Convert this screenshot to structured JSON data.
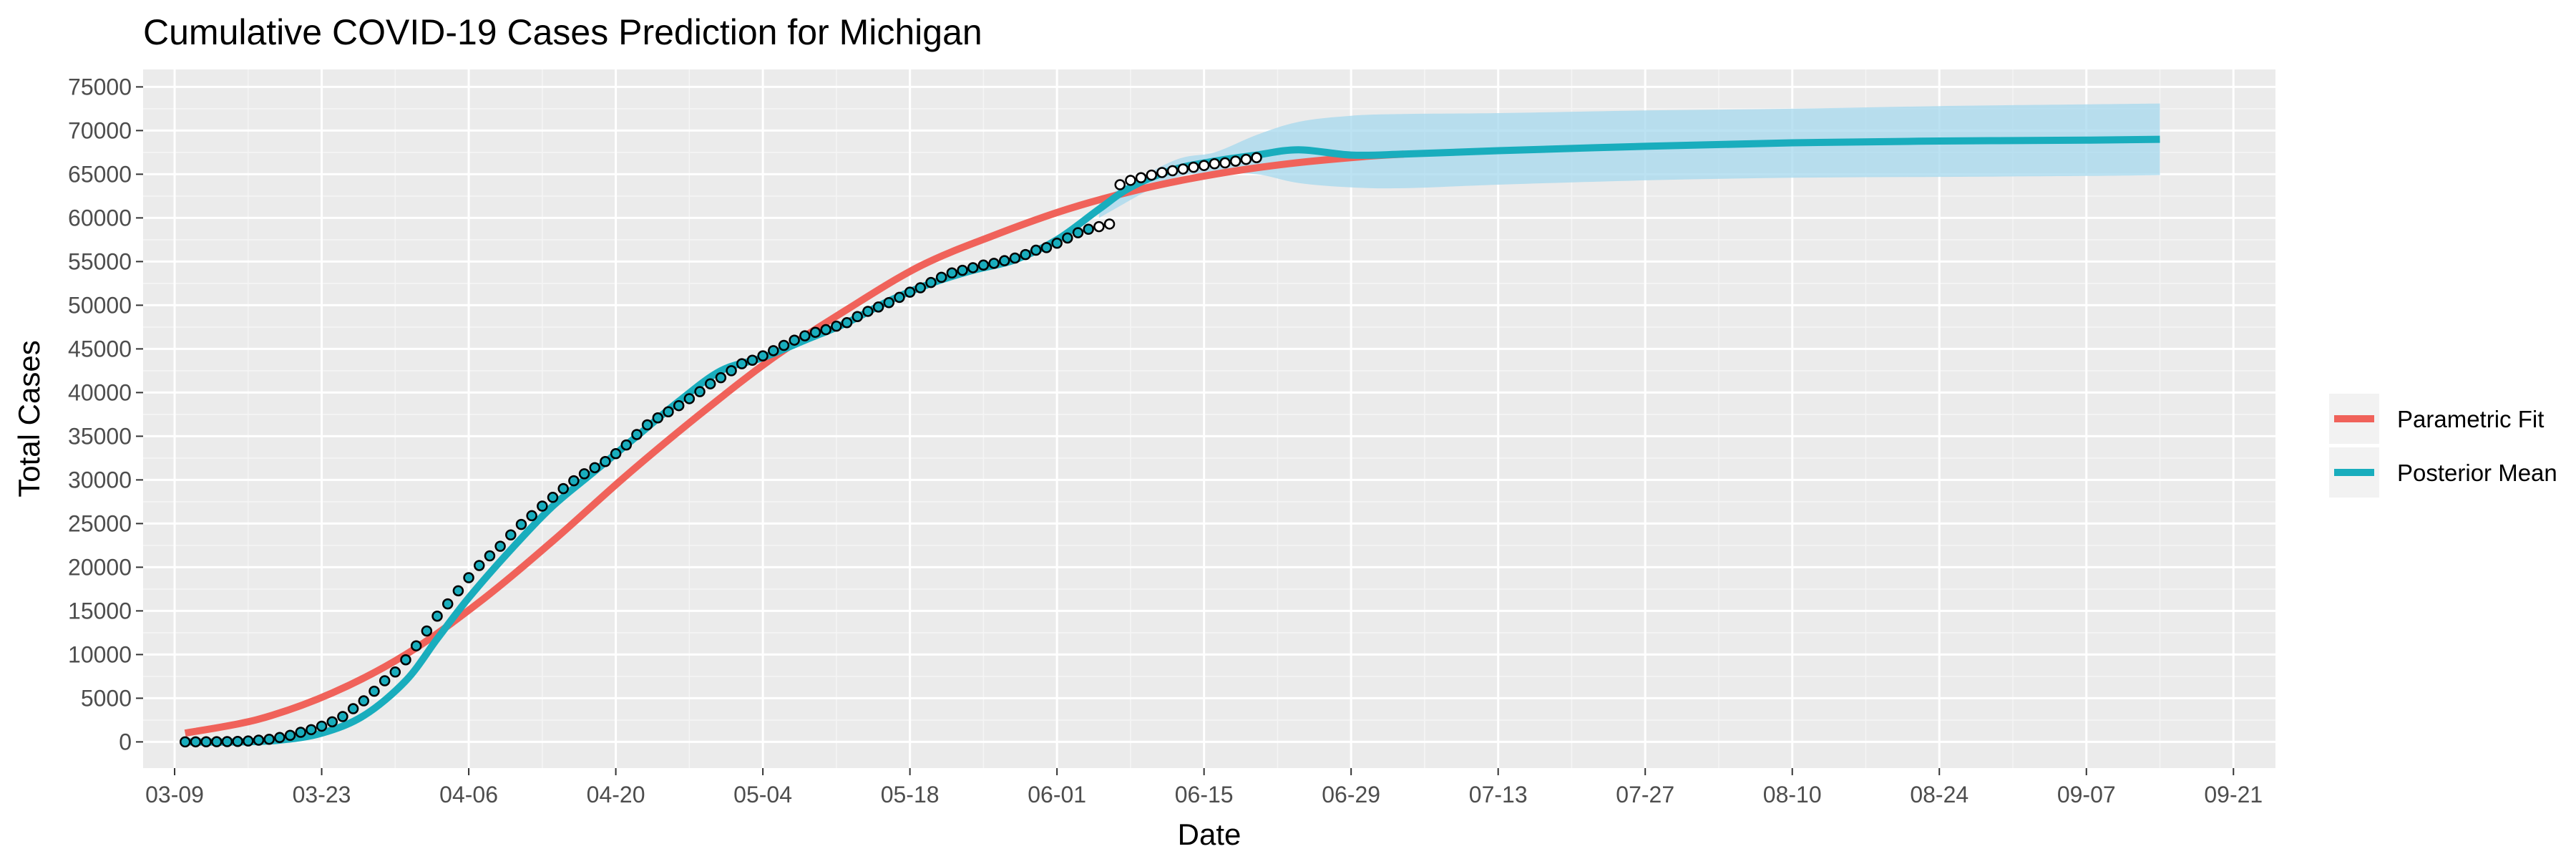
{
  "chart_data": {
    "type": "line",
    "title": "Cumulative COVID-19 Cases Prediction for Michigan",
    "xlabel": "Date",
    "ylabel": "Total Cases",
    "x_axis": {
      "type": "date",
      "range": [
        "2020-03-06",
        "2020-09-25"
      ],
      "ticks": [
        "2020-03-09",
        "2020-03-23",
        "2020-04-06",
        "2020-04-20",
        "2020-05-04",
        "2020-05-18",
        "2020-06-01",
        "2020-06-15",
        "2020-06-29",
        "2020-07-13",
        "2020-07-27",
        "2020-08-10",
        "2020-08-24",
        "2020-09-07",
        "2020-09-21"
      ],
      "tick_labels": [
        "03-09",
        "03-23",
        "04-06",
        "04-20",
        "05-04",
        "05-18",
        "06-01",
        "06-15",
        "06-29",
        "07-13",
        "07-27",
        "08-10",
        "08-24",
        "09-07",
        "09-21"
      ]
    },
    "y_axis": {
      "range": [
        -3000,
        77000
      ],
      "ticks": [
        0,
        5000,
        10000,
        15000,
        20000,
        25000,
        30000,
        35000,
        40000,
        45000,
        50000,
        55000,
        60000,
        65000,
        70000,
        75000
      ],
      "tick_labels": [
        "0",
        "5000",
        "10000",
        "15000",
        "20000",
        "25000",
        "30000",
        "35000",
        "40000",
        "45000",
        "50000",
        "55000",
        "60000",
        "65000",
        "70000",
        "75000"
      ]
    },
    "grid": true,
    "legend": {
      "position": "right",
      "entries": [
        "Parametric Fit",
        "Posterior Mean"
      ]
    },
    "series": [
      {
        "name": "Parametric Fit",
        "color": "#f0625a",
        "x": [
          "2020-03-10",
          "2020-03-17",
          "2020-03-24",
          "2020-03-31",
          "2020-04-07",
          "2020-04-14",
          "2020-04-21",
          "2020-04-28",
          "2020-05-05",
          "2020-05-12",
          "2020-05-19",
          "2020-05-26",
          "2020-06-02",
          "2020-06-09",
          "2020-06-16",
          "2020-06-23",
          "2020-06-30",
          "2020-07-04"
        ],
        "y": [
          1000,
          2600,
          5600,
          10000,
          16000,
          23000,
          30500,
          37500,
          44000,
          49500,
          54500,
          58000,
          61000,
          63300,
          65000,
          66200,
          67000,
          67300
        ]
      },
      {
        "name": "Posterior Mean",
        "color": "#19adbd",
        "x": [
          "2020-03-10",
          "2020-03-15",
          "2020-03-19",
          "2020-03-23",
          "2020-03-27",
          "2020-03-31",
          "2020-04-03",
          "2020-04-06",
          "2020-04-10",
          "2020-04-14",
          "2020-04-18",
          "2020-04-22",
          "2020-04-26",
          "2020-04-30",
          "2020-05-04",
          "2020-05-08",
          "2020-05-12",
          "2020-05-16",
          "2020-05-20",
          "2020-05-24",
          "2020-05-28",
          "2020-06-01",
          "2020-06-05",
          "2020-06-08",
          "2020-06-12",
          "2020-06-16",
          "2020-06-20",
          "2020-06-24",
          "2020-06-29",
          "2020-07-04",
          "2020-07-13",
          "2020-07-27",
          "2020-08-10",
          "2020-08-24",
          "2020-09-07",
          "2020-09-14"
        ],
        "y": [
          0,
          0,
          200,
          1000,
          3000,
          7000,
          11800,
          16500,
          22000,
          27000,
          31000,
          35000,
          39000,
          42500,
          44000,
          46000,
          48000,
          50500,
          52500,
          54000,
          55200,
          57500,
          61000,
          63500,
          65500,
          66500,
          67200,
          67800,
          67200,
          67300,
          67700,
          68200,
          68600,
          68800,
          68900,
          69000
        ]
      }
    ],
    "credible_band": {
      "color": "#a6d8ee",
      "x": [
        "2020-06-05",
        "2020-06-12",
        "2020-06-16",
        "2020-06-20",
        "2020-06-24",
        "2020-06-29",
        "2020-07-04",
        "2020-07-13",
        "2020-07-27",
        "2020-08-10",
        "2020-08-24",
        "2020-09-07",
        "2020-09-14"
      ],
      "lower": [
        60000,
        64500,
        65000,
        65000,
        64000,
        63500,
        63400,
        63800,
        64300,
        64600,
        64700,
        64800,
        64900
      ],
      "upper": [
        62000,
        66500,
        67500,
        69500,
        71000,
        71700,
        71900,
        72000,
        72300,
        72500,
        72800,
        73000,
        73100
      ]
    },
    "observed": {
      "marker": "open-circle",
      "color": "#000000",
      "fill": "#19adbd",
      "fill_after": "#ffffff",
      "fill_change_date": "2020-06-05",
      "start": "2020-03-10",
      "y": [
        3,
        7,
        12,
        20,
        32,
        50,
        100,
        200,
        300,
        500,
        750,
        1100,
        1400,
        1800,
        2300,
        2900,
        3800,
        4700,
        5800,
        7000,
        8000,
        9400,
        11000,
        12700,
        14400,
        15800,
        17300,
        18800,
        20200,
        21300,
        22400,
        23700,
        24900,
        25900,
        27000,
        28000,
        29000,
        29900,
        30700,
        31400,
        32100,
        33000,
        34000,
        35200,
        36300,
        37100,
        37800,
        38500,
        39300,
        40100,
        41000,
        41700,
        42500,
        43300,
        43700,
        44200,
        44800,
        45400,
        46000,
        46500,
        46900,
        47200,
        47600,
        48000,
        48700,
        49300,
        49800,
        50300,
        50900,
        51500,
        52000,
        52600,
        53200,
        53700,
        54000,
        54300,
        54600,
        54800,
        55100,
        55400,
        55800,
        56300,
        56600,
        57100,
        57700,
        58300,
        58700,
        59000,
        59300,
        63800,
        64300,
        64600,
        64900,
        65200,
        65400,
        65600,
        65800,
        66000,
        66200,
        66300,
        66500,
        66700,
        66900
      ]
    }
  }
}
